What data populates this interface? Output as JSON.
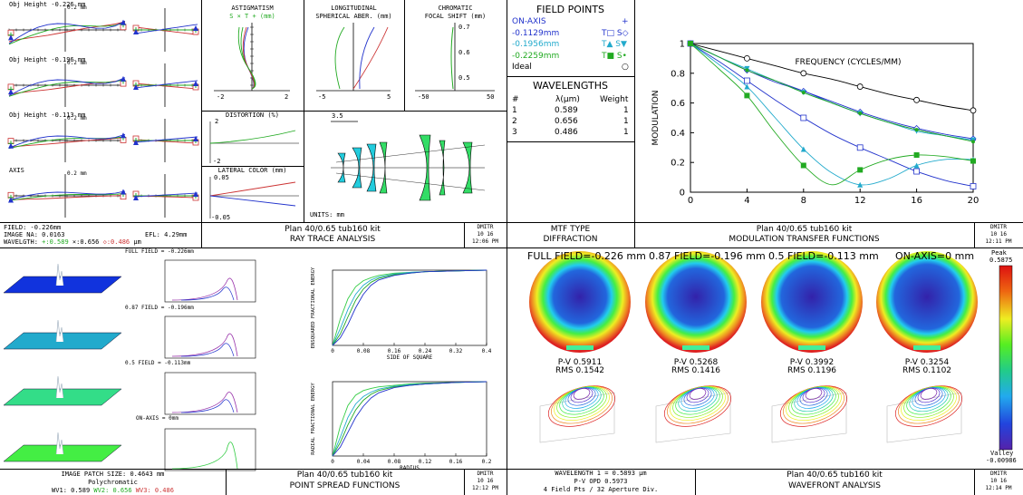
{
  "colors": {
    "red": "#cc3333",
    "green": "#22aa22",
    "blue": "#2233cc",
    "cyan": "#22aacc",
    "ltgreen": "#33cc44",
    "black": "#000000",
    "map_blue": "#1133dd",
    "map_cyan": "#22aacc",
    "map_green": "#33dd88",
    "map_lime": "#44ee44"
  },
  "ray_trace": {
    "labels": [
      "Obj Height -0.226 mm",
      "Obj Height -0.196 mm",
      "Obj Height -0.113 mm",
      "AXIS"
    ],
    "scale": "0.2 mm",
    "field": "FIELD: -0.226mm",
    "image_na": "IMAGE NA: 0.0163",
    "efl": "EFL: 4.29mm",
    "wl_label": "WAVELGTH:",
    "wl1": "+:0.589",
    "wl2": "×:0.656",
    "wl3": "◇:0.486",
    "wl_unit": "μm",
    "astig_title1": "ASTIGMATISM",
    "astig_title2": "S × T + (mm)",
    "astig_ticks": [
      "-2",
      "2"
    ],
    "long_title1": "LONGITUDINAL",
    "long_title2": "SPHERICAL ABER. (mm)",
    "long_ticks": [
      "-5",
      "5"
    ],
    "chrom_title1": "CHROMATIC",
    "chrom_title2": "FOCAL SHIFT (mm)",
    "chrom_ticks": [
      "-50",
      "50",
      "0.7",
      "0.6",
      "0.5"
    ],
    "dist_title": "DISTORTION (%)",
    "dist_ticks": [
      "2",
      "-2"
    ],
    "lat_title": "LATERAL COLOR (mm)",
    "lat_ticks": [
      "0.05",
      "-0.05"
    ],
    "units": "UNITS: mm",
    "scale_bar": "3.5",
    "title1": "Plan 40/0.65 tub160 kit",
    "title2": "RAY TRACE ANALYSIS",
    "stamp": [
      "DMITR",
      "10  16",
      "12:06 PM"
    ]
  },
  "field_points": {
    "title": "FIELD POINTS",
    "rows": [
      {
        "name": "ON-AXIS",
        "sym": "+",
        "color": "#2233cc"
      },
      {
        "name": "-0.1129mm",
        "sym": "T□  S◇",
        "color": "#2233cc"
      },
      {
        "name": "-0.1956mm",
        "sym": "T▲  S▼",
        "color": "#22aacc"
      },
      {
        "name": "-0.2259mm",
        "sym": "T■  S•",
        "color": "#22aa22"
      },
      {
        "name": "Ideal",
        "sym": "○",
        "color": "#000000"
      }
    ],
    "wl_title": "WAVELENGTHS",
    "wl_head": [
      "#",
      "λ(μm)",
      "Weight"
    ],
    "wl_rows": [
      [
        "1",
        "0.589",
        "1"
      ],
      [
        "2",
        "0.656",
        "1"
      ],
      [
        "3",
        "0.486",
        "1"
      ]
    ],
    "mtf_type": "MTF TYPE",
    "mtf_kind": "DIFFRACTION"
  },
  "mtf": {
    "title1": "Plan 40/0.65 tub160 kit",
    "title2": "MODULATION TRANSFER FUNCTIONS",
    "stamp": [
      "DMITR",
      "10  16",
      "12:11 PM"
    ]
  },
  "chart_data": [
    {
      "type": "line",
      "xlabel": "FREQUENCY (CYCLES/MM)",
      "ylabel": "MODULATION",
      "xlim": [
        0,
        20
      ],
      "ylim": [
        0,
        1
      ],
      "xticks": [
        "0",
        "4",
        "8",
        "12",
        "16",
        "20"
      ],
      "yticks": [
        "0",
        "0.2",
        "0.4",
        "0.6",
        "0.8",
        "1"
      ],
      "x": [
        0,
        2,
        4,
        6,
        8,
        10,
        12,
        14,
        16,
        18,
        20
      ],
      "series": [
        {
          "name": "Ideal",
          "color": "#000000",
          "marker": "circle",
          "values": [
            1,
            0.95,
            0.9,
            0.85,
            0.8,
            0.76,
            0.71,
            0.66,
            0.62,
            0.58,
            0.55
          ]
        },
        {
          "name": "ON-AXIS",
          "color": "#2233cc",
          "marker": "plus",
          "values": [
            1,
            0.91,
            0.82,
            0.74,
            0.68,
            0.6,
            0.53,
            0.47,
            0.42,
            0.38,
            0.35
          ]
        },
        {
          "name": "-0.1129mm T",
          "color": "#2233cc",
          "marker": "square",
          "values": [
            1,
            0.88,
            0.75,
            0.62,
            0.5,
            0.39,
            0.3,
            0.22,
            0.14,
            0.08,
            0.04
          ]
        },
        {
          "name": "-0.1129mm S",
          "color": "#2233cc",
          "marker": "diamond",
          "values": [
            1,
            0.91,
            0.82,
            0.75,
            0.68,
            0.61,
            0.54,
            0.48,
            0.43,
            0.39,
            0.36
          ]
        },
        {
          "name": "-0.1956mm T",
          "color": "#22aacc",
          "marker": "triangle",
          "values": [
            1,
            0.86,
            0.71,
            0.5,
            0.29,
            0.13,
            0.05,
            0.09,
            0.18,
            0.22,
            0.22
          ]
        },
        {
          "name": "-0.1956mm S",
          "color": "#22aacc",
          "marker": "tridown",
          "values": [
            1,
            0.91,
            0.83,
            0.75,
            0.67,
            0.6,
            0.53,
            0.47,
            0.41,
            0.38,
            0.35
          ]
        },
        {
          "name": "-0.2259mm T",
          "color": "#22aa22",
          "marker": "fsquare",
          "values": [
            1,
            0.83,
            0.65,
            0.4,
            0.18,
            0.05,
            0.15,
            0.22,
            0.25,
            0.24,
            0.21
          ]
        },
        {
          "name": "-0.2259mm S",
          "color": "#22aa22",
          "marker": "dot",
          "values": [
            1,
            0.91,
            0.82,
            0.75,
            0.67,
            0.6,
            0.53,
            0.47,
            0.42,
            0.38,
            0.34
          ]
        }
      ]
    },
    {
      "type": "line",
      "xlabel": "SIDE OF SQUARE",
      "ylabel": "ENSQUARED FRACTIONAL ENERGY",
      "xlim": [
        0,
        0.4
      ],
      "ylim": [
        0,
        1
      ],
      "xticks": [
        "0",
        "0.08",
        "0.16",
        "0.24",
        "0.32",
        "0.4"
      ],
      "x": [
        0,
        0.02,
        0.04,
        0.06,
        0.08,
        0.1,
        0.12,
        0.16,
        0.2,
        0.24,
        0.32,
        0.4
      ],
      "series": [
        {
          "color": "#33cc44",
          "values": [
            0,
            0.35,
            0.62,
            0.78,
            0.86,
            0.9,
            0.93,
            0.96,
            0.97,
            0.98,
            0.99,
            1
          ]
        },
        {
          "color": "#22aacc",
          "values": [
            0,
            0.22,
            0.48,
            0.68,
            0.8,
            0.87,
            0.91,
            0.95,
            0.97,
            0.98,
            0.99,
            1
          ]
        },
        {
          "color": "#22aa22",
          "values": [
            0,
            0.15,
            0.38,
            0.6,
            0.75,
            0.84,
            0.89,
            0.94,
            0.96,
            0.98,
            0.99,
            1
          ]
        },
        {
          "color": "#2233cc",
          "values": [
            0,
            0.1,
            0.28,
            0.5,
            0.68,
            0.8,
            0.87,
            0.93,
            0.96,
            0.98,
            0.99,
            1
          ]
        }
      ]
    },
    {
      "type": "line",
      "xlabel": "RADIUS",
      "ylabel": "RADIAL FRACTIONAL ENERGY",
      "xlim": [
        0,
        0.2
      ],
      "ylim": [
        0,
        1
      ],
      "xticks": [
        "0",
        "0.04",
        "0.08",
        "0.12",
        "0.16",
        "0.2"
      ],
      "x": [
        0,
        0.01,
        0.02,
        0.03,
        0.04,
        0.05,
        0.06,
        0.08,
        0.1,
        0.12,
        0.16,
        0.2
      ],
      "series": [
        {
          "color": "#33cc44",
          "values": [
            0,
            0.4,
            0.68,
            0.82,
            0.88,
            0.91,
            0.93,
            0.95,
            0.97,
            0.98,
            0.99,
            1
          ]
        },
        {
          "color": "#22aacc",
          "values": [
            0,
            0.25,
            0.52,
            0.7,
            0.8,
            0.86,
            0.9,
            0.94,
            0.96,
            0.97,
            0.99,
            1
          ]
        },
        {
          "color": "#22aa22",
          "values": [
            0,
            0.18,
            0.42,
            0.62,
            0.75,
            0.83,
            0.88,
            0.93,
            0.95,
            0.97,
            0.99,
            1
          ]
        },
        {
          "color": "#2233cc",
          "values": [
            0,
            0.12,
            0.32,
            0.52,
            0.67,
            0.78,
            0.85,
            0.92,
            0.95,
            0.97,
            0.99,
            1
          ]
        }
      ]
    }
  ],
  "psf": {
    "labels": [
      "FULL FIELD = -0.226mm",
      "0.87 FIELD = -0.196mm",
      "0.5 FIELD = -0.113mm",
      "ON-AXIS = 0mm"
    ],
    "patch": "IMAGE PATCH SIZE: 0.4643 mm",
    "poly": "Polychromatic",
    "wv1": "WV1: 0.589",
    "wv2": "WV2: 0.656",
    "wv3": "WV3: 0.486",
    "title1": "Plan 40/0.65 tub160 kit",
    "title2": "POINT SPREAD FUNCTIONS",
    "stamp": [
      "DMITR",
      "10  16",
      "12:12 PM"
    ]
  },
  "wavefront": {
    "headers": [
      "FULL FIELD=-0.226 mm",
      "0.87 FIELD=-0.196 mm",
      "0.5 FIELD=-0.113 mm",
      "ON-AXIS=0 mm"
    ],
    "pv": [
      "P-V 0.5911",
      "P-V 0.5268",
      "P-V 0.3992",
      "P-V 0.3254"
    ],
    "rms": [
      "RMS 0.1542",
      "RMS 0.1416",
      "RMS 0.1196",
      "RMS 0.1102"
    ],
    "peak_label": "Peak",
    "peak_val": "0.5875",
    "valley_label": "Valley",
    "valley_val": "-0.00986",
    "wl": "WAVELENGTH 1 = 0.5893 μm",
    "pv_opd": "P-V OPD 0.5973",
    "fields": "4 Field Pts / 32 Aperture Div.",
    "title1": "Plan 40/0.65 tub160 kit",
    "title2": "WAVEFRONT ANALYSIS",
    "stamp": [
      "DMITR",
      "10  16",
      "12:14 PM"
    ]
  }
}
